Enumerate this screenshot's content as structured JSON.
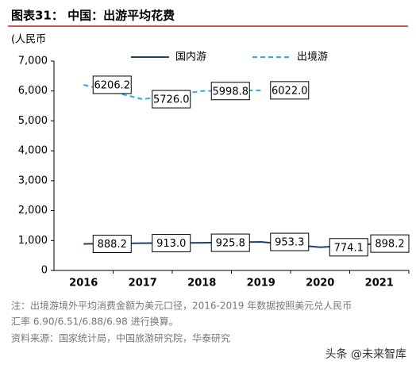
{
  "chart_data": {
    "type": "line",
    "title": "图表31： 中国：出游平均花费",
    "y_label": "(人民币",
    "categories": [
      "2016",
      "2017",
      "2018",
      "2019",
      "2020",
      "2021"
    ],
    "series": [
      {
        "name": "国内游",
        "color": "#1f3f73",
        "dash": false,
        "values": [
          888.2,
          913.0,
          925.8,
          953.3,
          774.1,
          898.2
        ],
        "value_labels": [
          "888.2",
          "913.0",
          "925.8",
          "953.3",
          "774.1",
          "898.2"
        ]
      },
      {
        "name": "出境游",
        "color": "#2fb0d8",
        "dash": true,
        "values": [
          6206.2,
          5726.0,
          5998.8,
          6022.0,
          null,
          null
        ],
        "value_labels": [
          "6206.2",
          "5726.0",
          "5998.8",
          "6022.0",
          null,
          null
        ]
      }
    ],
    "ylim": [
      0,
      7000
    ],
    "yticks": [
      0,
      {
        "value": 1000,
        "label": "1,000"
      },
      {
        "value": 2000,
        "label": "2,000"
      },
      {
        "value": 3000,
        "label": "3,000"
      },
      {
        "value": 4000,
        "label": "4,000"
      },
      {
        "value": 5000,
        "label": "5,000"
      },
      {
        "value": 6000,
        "label": "6,000"
      },
      {
        "value": 7000,
        "label": "7,000"
      }
    ],
    "grid": false,
    "note": [
      "注：出境游境外平均消费金额为美元口径，2016-2019 年数据按照美元兑人民币",
      "汇率 6.90/6.51/6.88/6.98 进行换算。"
    ],
    "source": "资料来源：国家统计局，中国旅游研究院，华泰研究",
    "watermark": "头条 @未来智库"
  }
}
